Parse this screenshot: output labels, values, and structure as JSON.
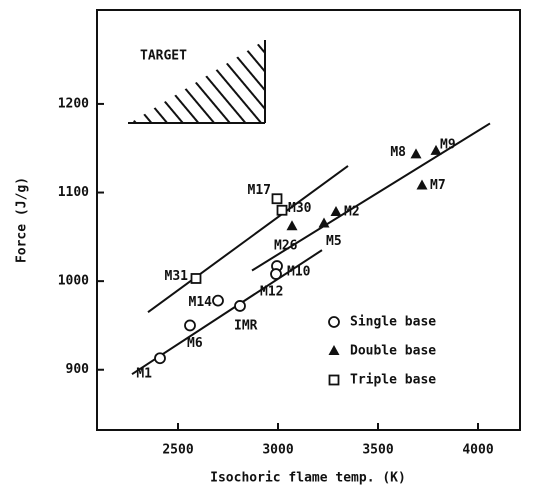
{
  "chart_data": {
    "type": "scatter",
    "xlabel": "Isochoric flame temp. (K)",
    "ylabel": "Force (J/g)",
    "annotation": "TARGET",
    "xlim": [
      2095,
      4210
    ],
    "xticks": [
      2500,
      3000,
      3500,
      4000
    ],
    "ylim": [
      832,
      1306
    ],
    "yticks": [
      900,
      1000,
      1100,
      1200
    ],
    "legend": "lower right",
    "series": [
      {
        "name": "Single base",
        "marker": "circle",
        "color": "#111111",
        "x": [
          2410,
          2560,
          2700,
          2810,
          2995,
          2990
        ],
        "values": [
          913,
          950,
          978,
          972,
          1017,
          1008
        ],
        "point_labels": [
          "M1",
          "M6",
          "M14",
          "IMR",
          "M10",
          "M12"
        ],
        "trend": {
          "x": [
            2270,
            3220
          ],
          "y": [
            895,
            1035
          ]
        }
      },
      {
        "name": "Double base",
        "marker": "triangle",
        "color": "#111111",
        "x": [
          3070,
          3290,
          3230,
          3690,
          3790,
          3720
        ],
        "values": [
          1062,
          1078,
          1065,
          1143,
          1147,
          1108
        ],
        "point_labels": [
          "M26",
          "M2",
          "M5",
          "M8",
          "M9",
          "M7"
        ],
        "trend": {
          "x": [
            2870,
            4060
          ],
          "y": [
            1012,
            1178
          ]
        }
      },
      {
        "name": "Triple base",
        "marker": "square",
        "color": "#111111",
        "x": [
          2590,
          2995,
          3020
        ],
        "values": [
          1003,
          1093,
          1080
        ],
        "point_labels": [
          "M31",
          "M17",
          "M30"
        ],
        "trend": {
          "x": [
            2350,
            3350
          ],
          "y": [
            965,
            1130
          ]
        }
      }
    ]
  }
}
